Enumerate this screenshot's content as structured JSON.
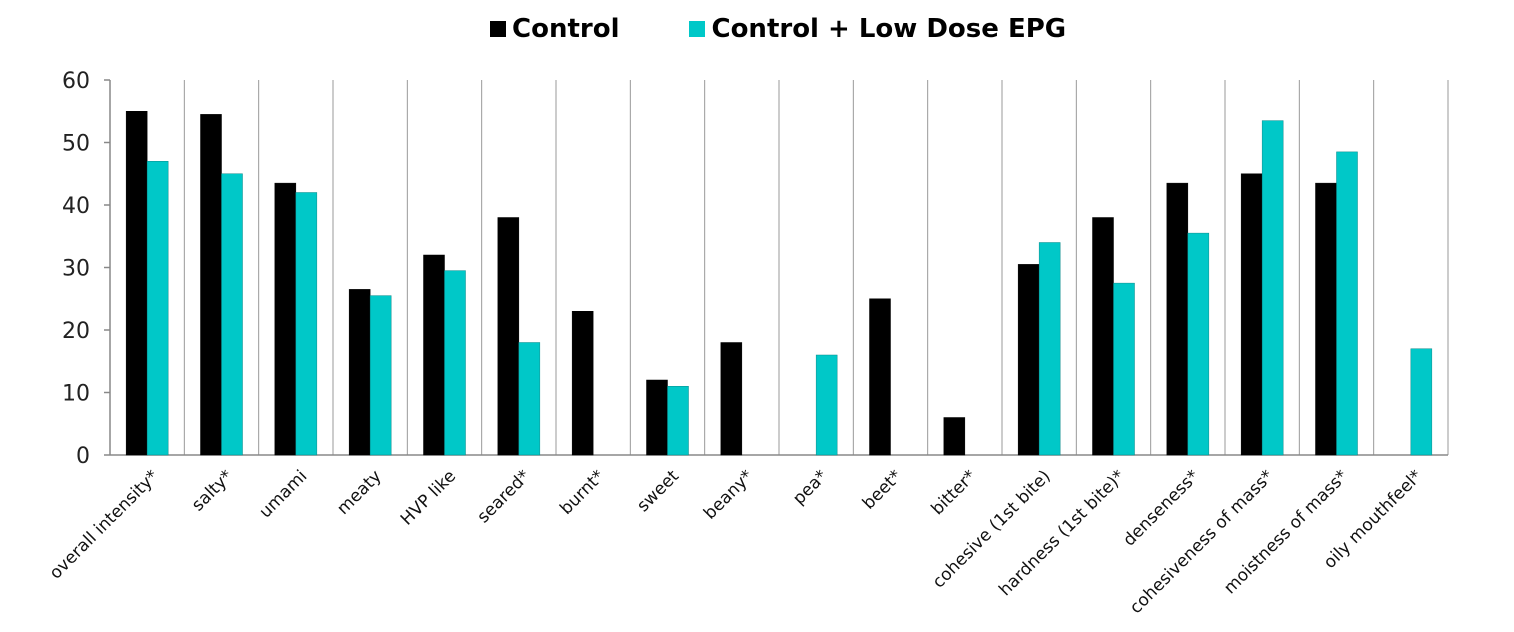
{
  "colors": {
    "control": "#000000",
    "low_dose": "#00C8C8",
    "grid": "#999999",
    "axis": "#888888"
  },
  "legend": {
    "items": [
      {
        "label": "Control",
        "color": "#000000"
      },
      {
        "label": "Control + Low Dose EPG",
        "color": "#00C8C8"
      }
    ],
    "placement": "top-center"
  },
  "chart_data": {
    "type": "bar",
    "title": "",
    "xlabel": "",
    "ylabel": "",
    "ylim": [
      0,
      60
    ],
    "yticks": [
      0,
      10,
      20,
      30,
      40,
      50,
      60
    ],
    "grid": "vertical category separators",
    "categories": [
      "overall intensity*",
      "salty*",
      "umami",
      "meaty",
      "HVP like",
      "seared*",
      "burnt*",
      "sweet",
      "beany*",
      "pea*",
      "beet*",
      "bitter*",
      "cohesive (1st bite)",
      "hardness (1st bite)*",
      "denseness*",
      "cohesiveness of mass*",
      "moistness of mass*",
      "oily mouthfeel*"
    ],
    "series": [
      {
        "name": "Control",
        "color": "#000000",
        "values": [
          55,
          54.5,
          43.5,
          26.5,
          32,
          38,
          23,
          12,
          18,
          0,
          25,
          6,
          30.5,
          38,
          43.5,
          45,
          43.5,
          0
        ]
      },
      {
        "name": "Control + Low Dose EPG",
        "color": "#00C8C8",
        "values": [
          47,
          45,
          42,
          25.5,
          29.5,
          18,
          0,
          11,
          0,
          16,
          0,
          0,
          34,
          27.5,
          35.5,
          53.5,
          48.5,
          17
        ]
      }
    ]
  }
}
